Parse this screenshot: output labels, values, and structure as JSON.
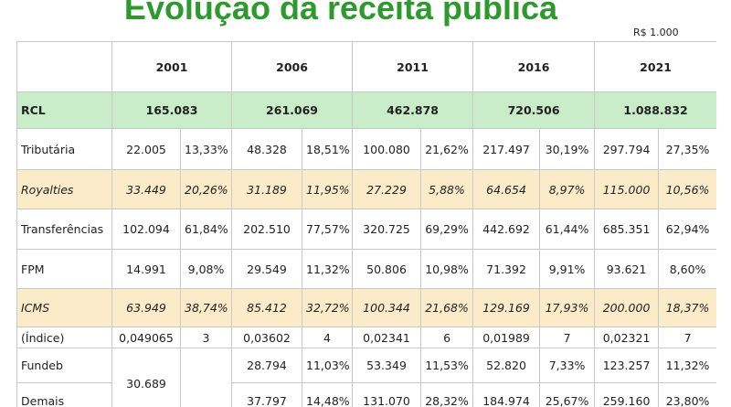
{
  "header": {
    "title": "Evolução da receita pública",
    "unit": "R$ 1.000"
  },
  "table": {
    "years": [
      "2001",
      "2006",
      "2011",
      "2016",
      "2021"
    ],
    "rcl": {
      "label": "RCL",
      "values": [
        "165.083",
        "261.069",
        "462.878",
        "720.506",
        "1.088.832"
      ]
    },
    "rows": [
      {
        "label": "Tributária",
        "cells": [
          "22.005",
          "13,33%",
          "48.328",
          "18,51%",
          "100.080",
          "21,62%",
          "217.497",
          "30,19%",
          "297.794",
          "27,35%"
        ]
      },
      {
        "label": "Royalties",
        "cells": [
          "33.449",
          "20,26%",
          "31.189",
          "11,95%",
          "27.229",
          "5,88%",
          "64.654",
          "8,97%",
          "115.000",
          "10,56%"
        ]
      },
      {
        "label": "Transferências",
        "cells": [
          "102.094",
          "61,84%",
          "202.510",
          "77,57%",
          "320.725",
          "69,29%",
          "442.692",
          "61,44%",
          "685.351",
          "62,94%"
        ]
      },
      {
        "label": "FPM",
        "cells": [
          "14.991",
          "9,08%",
          "29.549",
          "11,32%",
          "50.806",
          "10,98%",
          "71.392",
          "9,91%",
          "93.621",
          "8,60%"
        ]
      },
      {
        "label": "ICMS",
        "cells": [
          "63.949",
          "38,74%",
          "85.412",
          "32,72%",
          "100.344",
          "21,68%",
          "129.169",
          "17,93%",
          "200.000",
          "18,37%"
        ]
      },
      {
        "label": "(Índice)",
        "cells": [
          "0,049065",
          "3",
          "0,03602",
          "4",
          "0,02341",
          "6",
          "0,01989",
          "7",
          "0,02321",
          "7"
        ]
      }
    ],
    "fundeb_demais_2001": "30.689",
    "fundeb": {
      "label": "Fundeb",
      "cells": [
        "28.794",
        "11,03%",
        "53.349",
        "11,53%",
        "52.820",
        "7,33%",
        "123.257",
        "11,32%"
      ]
    },
    "demais": {
      "label": "Demais",
      "cells": [
        "37.797",
        "14,48%",
        "131.070",
        "28,32%",
        "184.974",
        "25,67%",
        "259.160",
        "23,80%"
      ]
    }
  }
}
